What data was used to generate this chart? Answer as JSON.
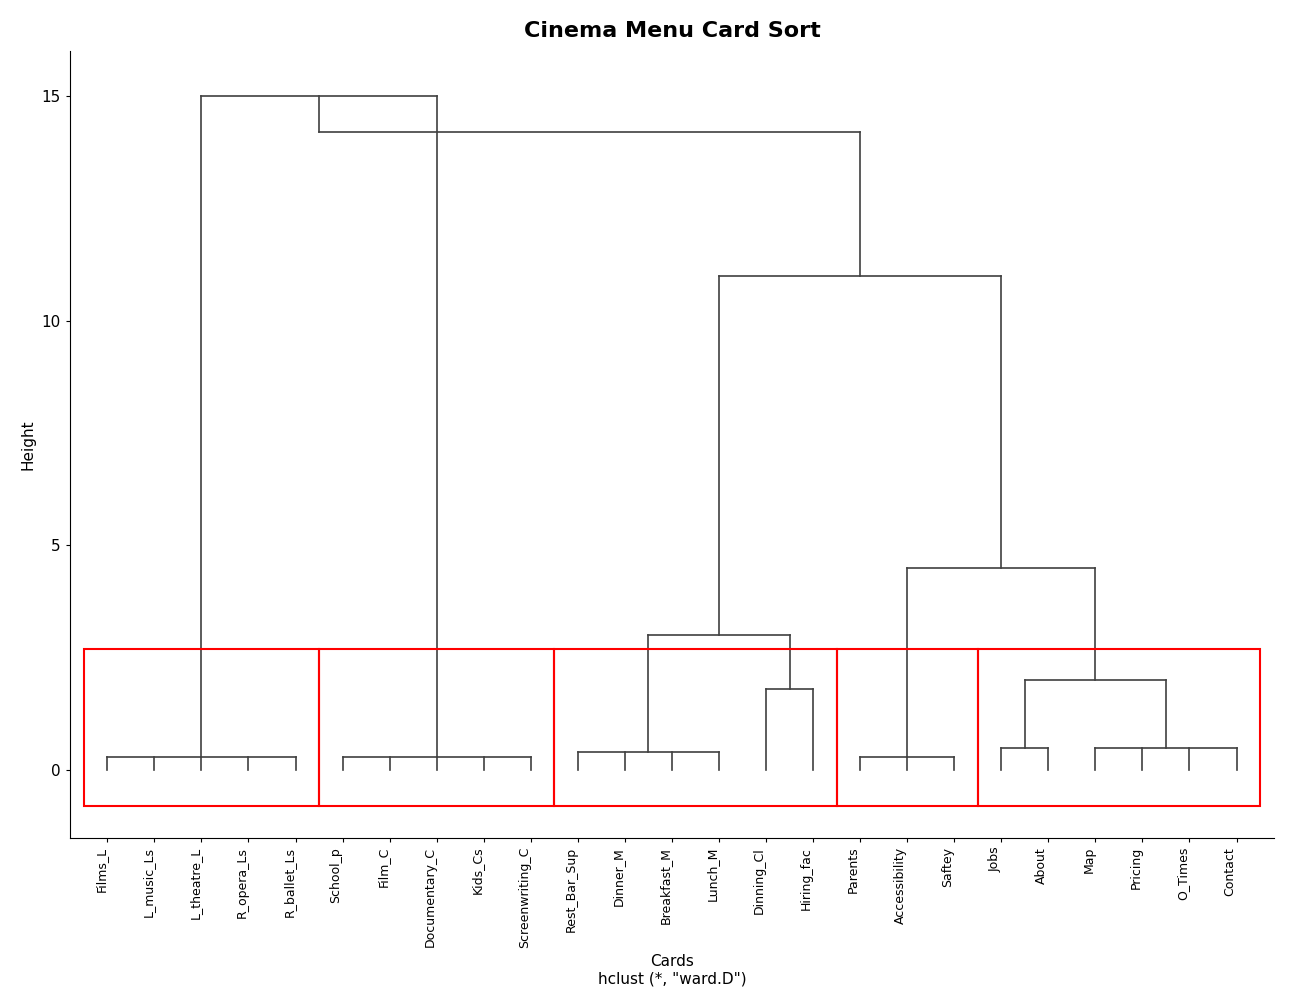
{
  "title": "Cinema Menu Card Sort",
  "ylabel": "Height",
  "xlabel_bottom": "Cards",
  "xlabel_sub": "hclust (*, \"ward.D\")",
  "ylim": [
    -1.5,
    16
  ],
  "yticks": [
    0,
    5,
    10,
    15
  ],
  "labels": [
    "Films_L",
    "L_music_Ls",
    "L_theatre_L",
    "R_opera_Ls",
    "R_ballet_Ls",
    "School_p",
    "Film_C",
    "Documentary_C",
    "Kids_Cs",
    "Screenwriting_C",
    "Rest_Bar_Sup",
    "Dinner_M",
    "Breakfast_M",
    "Lunch_M",
    "Dinning_Cl",
    "Hiring_fac",
    "Parents",
    "Accessibility",
    "Saftey",
    "Jobs",
    "About",
    "Map",
    "Pricing",
    "O_Times",
    "Contact"
  ],
  "clusters": [
    {
      "members": [
        0,
        1,
        2,
        3,
        4
      ],
      "box_color": "red"
    },
    {
      "members": [
        5,
        6,
        7,
        8,
        9
      ],
      "box_color": "red"
    },
    {
      "members": [
        10,
        11,
        12,
        13,
        14,
        15
      ],
      "box_color": "red"
    },
    {
      "members": [
        16,
        17,
        18
      ],
      "box_color": "red"
    },
    {
      "members": [
        19,
        20,
        21,
        22,
        23,
        24
      ],
      "box_color": "red"
    }
  ],
  "line_color": "#404040",
  "bg_color": "white",
  "title_fontsize": 16,
  "label_fontsize": 9,
  "axis_fontsize": 11
}
